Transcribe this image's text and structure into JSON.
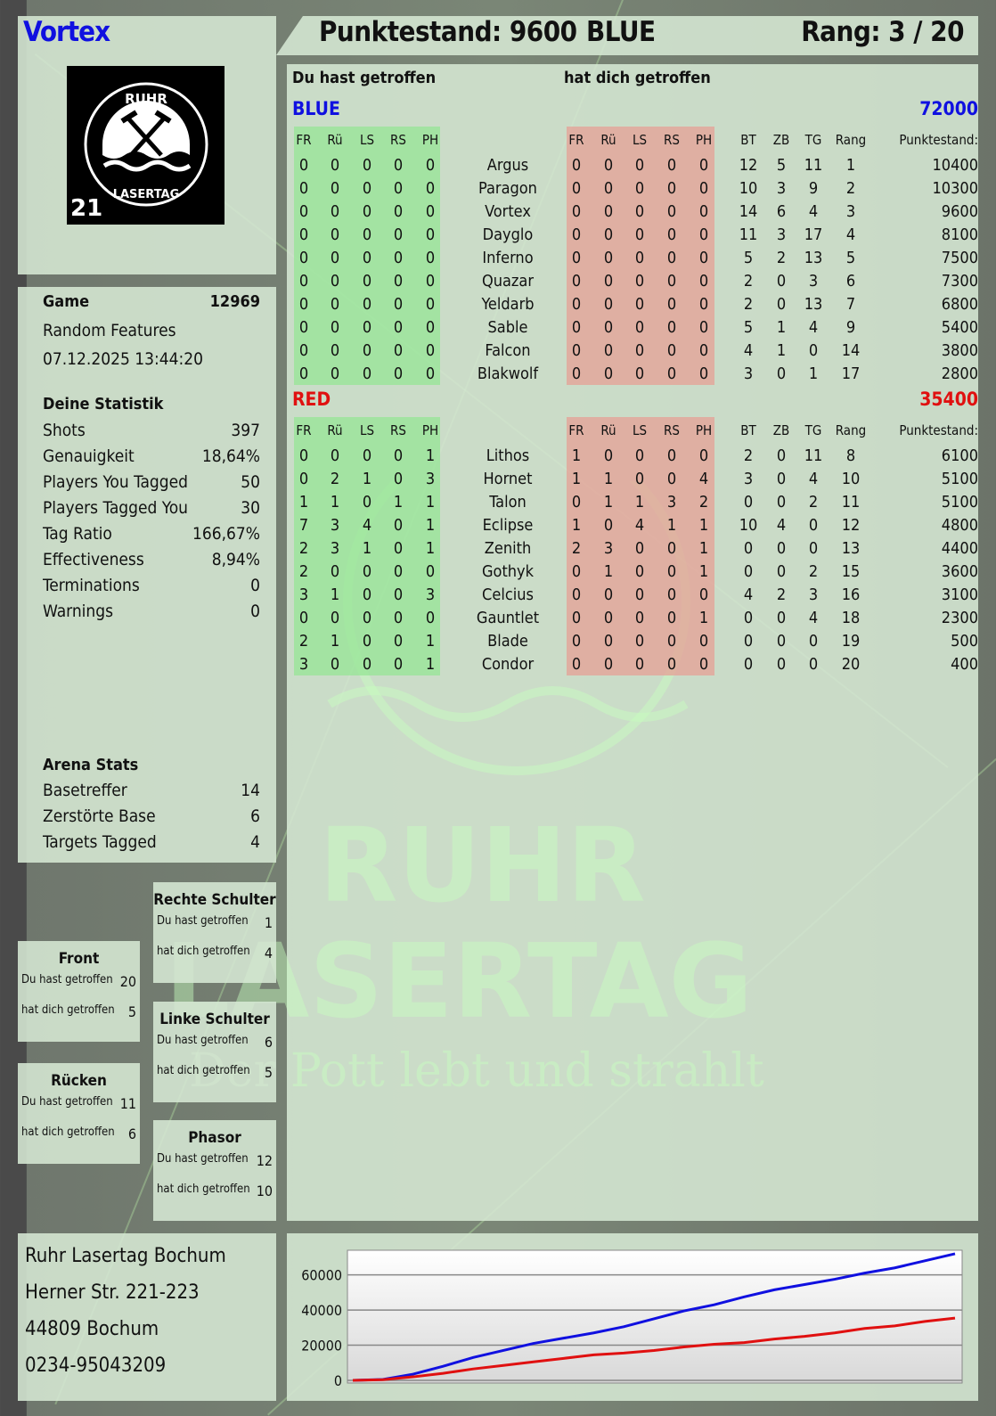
{
  "player": {
    "name": "Vortex",
    "score_label": "Punktestand: 9600",
    "team": "BLUE",
    "rank_label": "Rang: 3 / 20"
  },
  "logo": {
    "text_top": "RUHR",
    "text_bottom": "LASERTAG",
    "badge": "21"
  },
  "watermark": {
    "line1": "RUHR",
    "line2": "LASERTAG",
    "slogan": "Der Pott lebt und strahlt"
  },
  "colors": {
    "blue": "#1010e0",
    "red": "#e01010",
    "hit_you": "#96e696",
    "hit_by": "#e6a096"
  },
  "table": {
    "you_hit_label": "Du hast getroffen",
    "hit_you_label": "hat dich getroffen",
    "left_headers": [
      "FR",
      "Rü",
      "LS",
      "RS",
      "PH"
    ],
    "right_headers": [
      "FR",
      "Rü",
      "LS",
      "RS",
      "PH"
    ],
    "stat_headers": [
      "BT",
      "ZB",
      "TG",
      "Rang",
      "Punktestand:"
    ],
    "teams": [
      {
        "name": "BLUE",
        "total": "72000",
        "color": "#1010e0",
        "players": [
          {
            "name": "Argus",
            "hit": [
              "0",
              "0",
              "0",
              "0",
              "0"
            ],
            "got": [
              "0",
              "0",
              "0",
              "0",
              "0"
            ],
            "bt": "12",
            "zb": "5",
            "tg": "11",
            "rang": "1",
            "score": "10400"
          },
          {
            "name": "Paragon",
            "hit": [
              "0",
              "0",
              "0",
              "0",
              "0"
            ],
            "got": [
              "0",
              "0",
              "0",
              "0",
              "0"
            ],
            "bt": "10",
            "zb": "3",
            "tg": "9",
            "rang": "2",
            "score": "10300"
          },
          {
            "name": "Vortex",
            "hit": [
              "0",
              "0",
              "0",
              "0",
              "0"
            ],
            "got": [
              "0",
              "0",
              "0",
              "0",
              "0"
            ],
            "bt": "14",
            "zb": "6",
            "tg": "4",
            "rang": "3",
            "score": "9600"
          },
          {
            "name": "Dayglo",
            "hit": [
              "0",
              "0",
              "0",
              "0",
              "0"
            ],
            "got": [
              "0",
              "0",
              "0",
              "0",
              "0"
            ],
            "bt": "11",
            "zb": "3",
            "tg": "17",
            "rang": "4",
            "score": "8100"
          },
          {
            "name": "Inferno",
            "hit": [
              "0",
              "0",
              "0",
              "0",
              "0"
            ],
            "got": [
              "0",
              "0",
              "0",
              "0",
              "0"
            ],
            "bt": "5",
            "zb": "2",
            "tg": "13",
            "rang": "5",
            "score": "7500"
          },
          {
            "name": "Quazar",
            "hit": [
              "0",
              "0",
              "0",
              "0",
              "0"
            ],
            "got": [
              "0",
              "0",
              "0",
              "0",
              "0"
            ],
            "bt": "2",
            "zb": "0",
            "tg": "3",
            "rang": "6",
            "score": "7300"
          },
          {
            "name": "Yeldarb",
            "hit": [
              "0",
              "0",
              "0",
              "0",
              "0"
            ],
            "got": [
              "0",
              "0",
              "0",
              "0",
              "0"
            ],
            "bt": "2",
            "zb": "0",
            "tg": "13",
            "rang": "7",
            "score": "6800"
          },
          {
            "name": "Sable",
            "hit": [
              "0",
              "0",
              "0",
              "0",
              "0"
            ],
            "got": [
              "0",
              "0",
              "0",
              "0",
              "0"
            ],
            "bt": "5",
            "zb": "1",
            "tg": "4",
            "rang": "9",
            "score": "5400"
          },
          {
            "name": "Falcon",
            "hit": [
              "0",
              "0",
              "0",
              "0",
              "0"
            ],
            "got": [
              "0",
              "0",
              "0",
              "0",
              "0"
            ],
            "bt": "4",
            "zb": "1",
            "tg": "0",
            "rang": "14",
            "score": "3800"
          },
          {
            "name": "Blakwolf",
            "hit": [
              "0",
              "0",
              "0",
              "0",
              "0"
            ],
            "got": [
              "0",
              "0",
              "0",
              "0",
              "0"
            ],
            "bt": "3",
            "zb": "0",
            "tg": "1",
            "rang": "17",
            "score": "2800"
          }
        ]
      },
      {
        "name": "RED",
        "total": "35400",
        "color": "#e01010",
        "players": [
          {
            "name": "Lithos",
            "hit": [
              "0",
              "0",
              "0",
              "0",
              "1"
            ],
            "got": [
              "1",
              "0",
              "0",
              "0",
              "0"
            ],
            "bt": "2",
            "zb": "0",
            "tg": "11",
            "rang": "8",
            "score": "6100"
          },
          {
            "name": "Hornet",
            "hit": [
              "0",
              "2",
              "1",
              "0",
              "3"
            ],
            "got": [
              "1",
              "1",
              "0",
              "0",
              "4"
            ],
            "bt": "3",
            "zb": "0",
            "tg": "4",
            "rang": "10",
            "score": "5100"
          },
          {
            "name": "Talon",
            "hit": [
              "1",
              "1",
              "0",
              "1",
              "1"
            ],
            "got": [
              "0",
              "1",
              "1",
              "3",
              "2"
            ],
            "bt": "0",
            "zb": "0",
            "tg": "2",
            "rang": "11",
            "score": "5100"
          },
          {
            "name": "Eclipse",
            "hit": [
              "7",
              "3",
              "4",
              "0",
              "1"
            ],
            "got": [
              "1",
              "0",
              "4",
              "1",
              "1"
            ],
            "bt": "10",
            "zb": "4",
            "tg": "0",
            "rang": "12",
            "score": "4800"
          },
          {
            "name": "Zenith",
            "hit": [
              "2",
              "3",
              "1",
              "0",
              "1"
            ],
            "got": [
              "2",
              "3",
              "0",
              "0",
              "1"
            ],
            "bt": "0",
            "zb": "0",
            "tg": "0",
            "rang": "13",
            "score": "4400"
          },
          {
            "name": "Gothyk",
            "hit": [
              "2",
              "0",
              "0",
              "0",
              "0"
            ],
            "got": [
              "0",
              "1",
              "0",
              "0",
              "1"
            ],
            "bt": "0",
            "zb": "0",
            "tg": "2",
            "rang": "15",
            "score": "3600"
          },
          {
            "name": "Celcius",
            "hit": [
              "3",
              "1",
              "0",
              "0",
              "3"
            ],
            "got": [
              "0",
              "0",
              "0",
              "0",
              "0"
            ],
            "bt": "4",
            "zb": "2",
            "tg": "3",
            "rang": "16",
            "score": "3100"
          },
          {
            "name": "Gauntlet",
            "hit": [
              "0",
              "0",
              "0",
              "0",
              "0"
            ],
            "got": [
              "0",
              "0",
              "0",
              "0",
              "1"
            ],
            "bt": "0",
            "zb": "0",
            "tg": "4",
            "rang": "18",
            "score": "2300"
          },
          {
            "name": "Blade",
            "hit": [
              "2",
              "1",
              "0",
              "0",
              "1"
            ],
            "got": [
              "0",
              "0",
              "0",
              "0",
              "0"
            ],
            "bt": "0",
            "zb": "0",
            "tg": "0",
            "rang": "19",
            "score": "500"
          },
          {
            "name": "Condor",
            "hit": [
              "3",
              "0",
              "0",
              "0",
              "1"
            ],
            "got": [
              "0",
              "0",
              "0",
              "0",
              "0"
            ],
            "bt": "0",
            "zb": "0",
            "tg": "0",
            "rang": "20",
            "score": "400"
          }
        ]
      }
    ]
  },
  "game": {
    "label": "Game",
    "id": "12969",
    "mode": "Random Features",
    "datetime": "07.12.2025 13:44:20"
  },
  "stats": {
    "title": "Deine Statistik",
    "items": [
      {
        "label": "Shots",
        "value": "397"
      },
      {
        "label": "Genauigkeit",
        "value": "18,64%"
      },
      {
        "label": "Players You Tagged",
        "value": "50"
      },
      {
        "label": "Players Tagged You",
        "value": "30"
      },
      {
        "label": "Tag Ratio",
        "value": "166,67%"
      },
      {
        "label": "Effectiveness",
        "value": "8,94%"
      },
      {
        "label": "Terminations",
        "value": "0"
      },
      {
        "label": "Warnings",
        "value": "0"
      }
    ]
  },
  "arena": {
    "title": "Arena Stats",
    "items": [
      {
        "label": "Basetreffer",
        "value": "14"
      },
      {
        "label": "Zerstörte Base",
        "value": "6"
      },
      {
        "label": "Targets Tagged",
        "value": "4"
      }
    ]
  },
  "zones": [
    {
      "name": "Rechte Schulter",
      "hit_label": "Du hast getroffen",
      "hit": "1",
      "got_label": "hat dich getroffen",
      "got": "4"
    },
    {
      "name": "Front",
      "hit_label": "Du hast getroffen",
      "hit": "20",
      "got_label": "hat dich getroffen",
      "got": "5"
    },
    {
      "name": "Linke Schulter",
      "hit_label": "Du hast getroffen",
      "hit": "6",
      "got_label": "hat dich getroffen",
      "got": "5"
    },
    {
      "name": "Rücken",
      "hit_label": "Du hast getroffen",
      "hit": "11",
      "got_label": "hat dich getroffen",
      "got": "6"
    },
    {
      "name": "Phasor",
      "hit_label": "Du hast getroffen",
      "hit": "12",
      "got_label": "hat dich getroffen",
      "got": "10"
    }
  ],
  "address": {
    "lines": [
      "Ruhr Lasertag Bochum",
      "Herner Str. 221-223",
      "44809 Bochum",
      "0234-95043209"
    ]
  },
  "chart_data": {
    "type": "line",
    "ylim": [
      0,
      74000
    ],
    "yticks": [
      "60000",
      "40000",
      "20000",
      "0"
    ],
    "grid": true,
    "legend": "none",
    "x": [
      0,
      1,
      2,
      3,
      4,
      5,
      6,
      7,
      8,
      9,
      10,
      11,
      12,
      13,
      14,
      15,
      16,
      17,
      18,
      19,
      20
    ],
    "series": [
      {
        "color": "#1010e0",
        "values": [
          0,
          500,
          3500,
          8000,
          13000,
          17000,
          21000,
          24000,
          27000,
          30500,
          35000,
          39500,
          43000,
          47500,
          51500,
          54500,
          57500,
          61000,
          64000,
          68000,
          72000
        ]
      },
      {
        "color": "#e01010",
        "values": [
          0,
          400,
          2000,
          4000,
          6500,
          8500,
          10500,
          12500,
          14500,
          15500,
          17000,
          19000,
          20500,
          21500,
          23500,
          25000,
          27000,
          29500,
          31000,
          33500,
          35400
        ]
      }
    ]
  }
}
